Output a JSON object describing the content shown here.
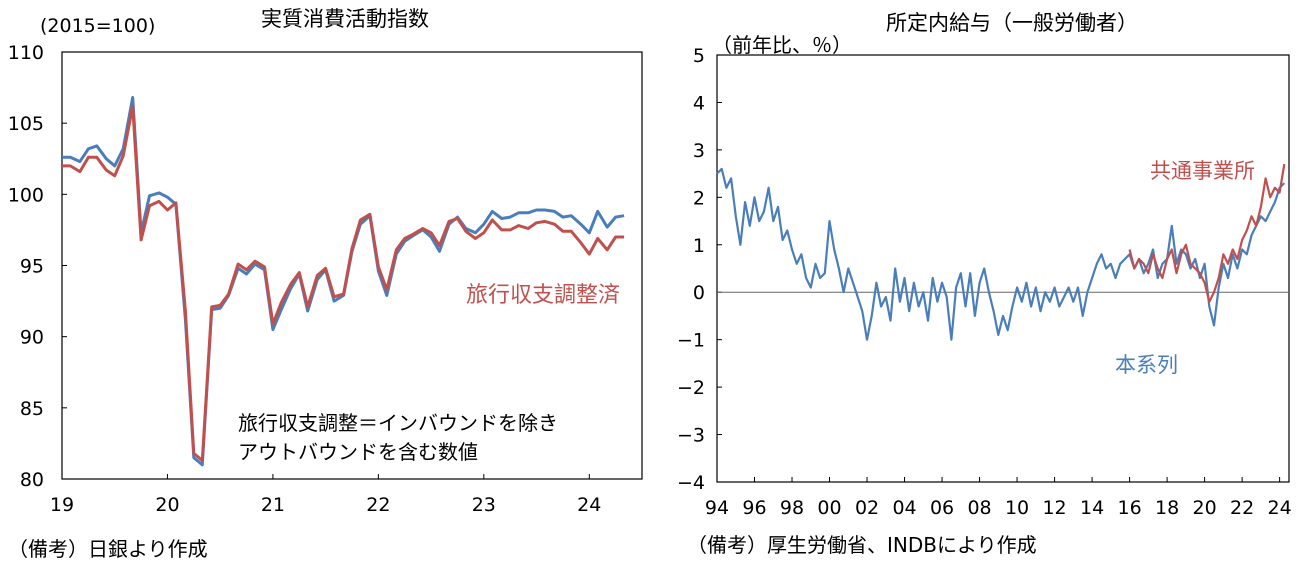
{
  "chart_data": [
    {
      "type": "line",
      "title": "実質消費活動指数",
      "unit_label": "(2015=100)",
      "xlabel": "",
      "ylabel": "",
      "x_ticks": [
        "19",
        "20",
        "21",
        "22",
        "23",
        "24"
      ],
      "y_ticks": [
        "80",
        "85",
        "90",
        "95",
        "100",
        "105",
        "110"
      ],
      "ylim": [
        80,
        110
      ],
      "xlim": [
        2019.0,
        2024.5
      ],
      "grid": false,
      "series_label": "旅行収支調整済",
      "annotation_lines": [
        "旅行収支調整＝インバウンドを除き",
        "アウトバウンドを含む数値"
      ],
      "colors": {
        "blue": "#4a7ebb",
        "red": "#c0504d"
      },
      "series": [
        {
          "name": "",
          "color": "#4a7ebb",
          "x": [
            2019.0,
            2019.08,
            2019.17,
            2019.25,
            2019.33,
            2019.42,
            2019.5,
            2019.58,
            2019.67,
            2019.75,
            2019.83,
            2019.92,
            2020.0,
            2020.08,
            2020.17,
            2020.25,
            2020.33,
            2020.42,
            2020.5,
            2020.58,
            2020.67,
            2020.75,
            2020.83,
            2020.92,
            2021.0,
            2021.08,
            2021.17,
            2021.25,
            2021.33,
            2021.42,
            2021.5,
            2021.58,
            2021.67,
            2021.75,
            2021.83,
            2021.92,
            2022.0,
            2022.08,
            2022.17,
            2022.25,
            2022.33,
            2022.42,
            2022.5,
            2022.58,
            2022.67,
            2022.75,
            2022.83,
            2022.92,
            2023.0,
            2023.08,
            2023.17,
            2023.25,
            2023.33,
            2023.42,
            2023.5,
            2023.58,
            2023.67,
            2023.75,
            2023.83,
            2023.92,
            2024.0,
            2024.08,
            2024.17,
            2024.25,
            2024.33
          ],
          "y": [
            102.6,
            102.6,
            102.3,
            103.2,
            103.4,
            102.5,
            102.0,
            103.2,
            106.8,
            97.3,
            99.9,
            100.1,
            99.8,
            99.3,
            91.2,
            81.5,
            81.0,
            91.9,
            92.0,
            92.9,
            94.8,
            94.4,
            95.1,
            94.7,
            90.5,
            91.9,
            93.4,
            94.4,
            91.8,
            94.0,
            94.7,
            92.5,
            92.9,
            96.0,
            97.9,
            98.5,
            94.6,
            92.9,
            95.8,
            96.7,
            97.1,
            97.5,
            97.0,
            96.0,
            97.9,
            98.4,
            97.6,
            97.3,
            97.9,
            98.8,
            98.3,
            98.4,
            98.7,
            98.7,
            98.9,
            98.9,
            98.8,
            98.4,
            98.5,
            97.9,
            97.3,
            98.8,
            97.7,
            98.4,
            98.5
          ]
        },
        {
          "name": "旅行収支調整済",
          "color": "#c0504d",
          "x": [
            2019.0,
            2019.08,
            2019.17,
            2019.25,
            2019.33,
            2019.42,
            2019.5,
            2019.58,
            2019.67,
            2019.75,
            2019.83,
            2019.92,
            2020.0,
            2020.08,
            2020.17,
            2020.25,
            2020.33,
            2020.42,
            2020.5,
            2020.58,
            2020.67,
            2020.75,
            2020.83,
            2020.92,
            2021.0,
            2021.08,
            2021.17,
            2021.25,
            2021.33,
            2021.42,
            2021.5,
            2021.58,
            2021.67,
            2021.75,
            2021.83,
            2021.92,
            2022.0,
            2022.08,
            2022.17,
            2022.25,
            2022.33,
            2022.42,
            2022.5,
            2022.58,
            2022.67,
            2022.75,
            2022.83,
            2022.92,
            2023.0,
            2023.08,
            2023.17,
            2023.25,
            2023.33,
            2023.42,
            2023.5,
            2023.58,
            2023.67,
            2023.75,
            2023.83,
            2023.92,
            2024.0,
            2024.08,
            2024.17,
            2024.25,
            2024.33
          ],
          "y": [
            102.0,
            102.0,
            101.6,
            102.6,
            102.6,
            101.7,
            101.3,
            102.7,
            106.2,
            96.8,
            99.2,
            99.5,
            98.9,
            99.4,
            91.8,
            81.8,
            81.3,
            92.1,
            92.2,
            93.0,
            95.1,
            94.7,
            95.3,
            94.9,
            90.9,
            92.4,
            93.7,
            94.5,
            92.1,
            94.3,
            94.8,
            92.8,
            93.0,
            96.2,
            98.2,
            98.6,
            94.9,
            93.3,
            96.1,
            96.9,
            97.2,
            97.6,
            97.3,
            96.4,
            98.1,
            98.3,
            97.4,
            96.9,
            97.3,
            98.2,
            97.5,
            97.5,
            97.8,
            97.6,
            98.0,
            98.1,
            97.9,
            97.4,
            97.4,
            96.6,
            95.8,
            96.9,
            96.1,
            97.0,
            97.0
          ]
        }
      ],
      "source_note": "（備考）日銀より作成"
    },
    {
      "type": "line",
      "title": "所定内給与（一般労働者）",
      "unit_label": "（前年比、％）",
      "xlabel": "",
      "ylabel": "",
      "x_ticks": [
        "94",
        "96",
        "98",
        "00",
        "02",
        "04",
        "06",
        "08",
        "10",
        "12",
        "14",
        "16",
        "18",
        "20",
        "22",
        "24"
      ],
      "y_ticks": [
        "−4",
        "−3",
        "−2",
        "−1",
        "0",
        "1",
        "2",
        "3",
        "4",
        "5"
      ],
      "ylim": [
        -4,
        5
      ],
      "xlim": [
        1994.0,
        2024.5
      ],
      "grid": false,
      "zero_line": true,
      "colors": {
        "blue": "#4a7ebb",
        "red": "#c0504d"
      },
      "series": [
        {
          "name": "本系列",
          "color": "#4a7ebb",
          "x": [
            1994.0,
            1994.25,
            1994.5,
            1994.75,
            1995.0,
            1995.25,
            1995.5,
            1995.75,
            1996.0,
            1996.25,
            1996.5,
            1996.75,
            1997.0,
            1997.25,
            1997.5,
            1997.75,
            1998.0,
            1998.25,
            1998.5,
            1998.75,
            1999.0,
            1999.25,
            1999.5,
            1999.75,
            2000.0,
            2000.25,
            2000.5,
            2000.75,
            2001.0,
            2001.25,
            2001.5,
            2001.75,
            2002.0,
            2002.25,
            2002.5,
            2002.75,
            2003.0,
            2003.25,
            2003.5,
            2003.75,
            2004.0,
            2004.25,
            2004.5,
            2004.75,
            2005.0,
            2005.25,
            2005.5,
            2005.75,
            2006.0,
            2006.25,
            2006.5,
            2006.75,
            2007.0,
            2007.25,
            2007.5,
            2007.75,
            2008.0,
            2008.25,
            2008.5,
            2008.75,
            2009.0,
            2009.25,
            2009.5,
            2009.75,
            2010.0,
            2010.25,
            2010.5,
            2010.75,
            2011.0,
            2011.25,
            2011.5,
            2011.75,
            2012.0,
            2012.25,
            2012.5,
            2012.75,
            2013.0,
            2013.25,
            2013.5,
            2013.75,
            2014.0,
            2014.25,
            2014.5,
            2014.75,
            2015.0,
            2015.25,
            2015.5,
            2015.75,
            2016.0,
            2016.25,
            2016.5,
            2016.75,
            2017.0,
            2017.25,
            2017.5,
            2017.75,
            2018.0,
            2018.25,
            2018.5,
            2018.75,
            2019.0,
            2019.25,
            2019.5,
            2019.75,
            2020.0,
            2020.25,
            2020.5,
            2020.75,
            2021.0,
            2021.25,
            2021.5,
            2021.75,
            2022.0,
            2022.25,
            2022.5,
            2022.75,
            2023.0,
            2023.25,
            2023.5,
            2023.75,
            2024.0,
            2024.25
          ],
          "y": [
            2.5,
            2.6,
            2.2,
            2.4,
            1.6,
            1.0,
            1.9,
            1.4,
            2.0,
            1.5,
            1.7,
            2.2,
            1.5,
            1.8,
            1.1,
            1.3,
            0.9,
            0.6,
            0.8,
            0.3,
            0.1,
            0.6,
            0.3,
            0.4,
            1.5,
            0.9,
            0.5,
            0.0,
            0.5,
            0.2,
            -0.1,
            -0.4,
            -1.0,
            -0.5,
            0.2,
            -0.3,
            -0.1,
            -0.6,
            0.5,
            -0.2,
            0.3,
            -0.4,
            0.2,
            -0.3,
            0.0,
            -0.6,
            0.3,
            -0.2,
            0.2,
            -0.1,
            -1.0,
            0.1,
            0.4,
            -0.3,
            0.4,
            -0.5,
            0.2,
            0.5,
            0.0,
            -0.4,
            -0.9,
            -0.5,
            -0.8,
            -0.3,
            0.1,
            -0.2,
            0.2,
            -0.3,
            0.1,
            -0.4,
            0.0,
            -0.2,
            0.1,
            -0.3,
            -0.1,
            0.1,
            -0.2,
            0.1,
            -0.5,
            0.0,
            0.3,
            0.6,
            0.8,
            0.5,
            0.6,
            0.3,
            0.6,
            0.7,
            0.8,
            0.5,
            0.7,
            0.4,
            0.6,
            0.9,
            0.3,
            0.6,
            0.7,
            1.4,
            0.6,
            0.9,
            0.8,
            0.5,
            0.7,
            0.3,
            0.6,
            -0.3,
            -0.7,
            0.1,
            0.6,
            0.3,
            0.8,
            0.5,
            0.9,
            0.8,
            1.2,
            1.4,
            1.6,
            1.5,
            1.7,
            1.9,
            2.2,
            2.3
          ]
        },
        {
          "name": "共通事業所",
          "color": "#c0504d",
          "x": [
            2016.0,
            2016.25,
            2016.5,
            2016.75,
            2017.0,
            2017.25,
            2017.5,
            2017.75,
            2018.0,
            2018.25,
            2018.5,
            2018.75,
            2019.0,
            2019.25,
            2019.5,
            2019.75,
            2020.0,
            2020.25,
            2020.5,
            2020.75,
            2021.0,
            2021.25,
            2021.5,
            2021.75,
            2022.0,
            2022.25,
            2022.5,
            2022.75,
            2023.0,
            2023.25,
            2023.5,
            2023.75,
            2024.0,
            2024.25
          ],
          "y": [
            0.9,
            0.5,
            0.7,
            0.6,
            0.4,
            0.8,
            0.5,
            0.3,
            0.7,
            0.9,
            0.4,
            0.8,
            1.0,
            0.6,
            0.5,
            0.4,
            0.2,
            -0.2,
            0.0,
            0.3,
            0.8,
            0.6,
            0.9,
            0.7,
            1.1,
            1.3,
            1.6,
            1.4,
            1.8,
            2.4,
            2.0,
            2.2,
            2.1,
            2.7
          ]
        }
      ],
      "source_note": "（備考）厚生労働省、INDBにより作成"
    }
  ]
}
